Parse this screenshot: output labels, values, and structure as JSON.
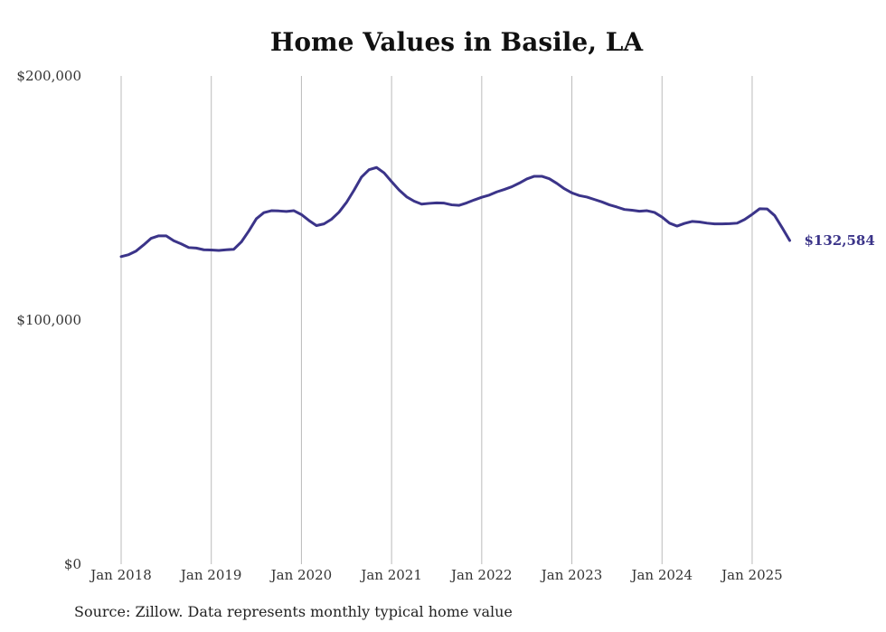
{
  "chart_data": {
    "type": "line",
    "title": "Home Values in Basile, LA",
    "xlabel": "",
    "ylabel": "",
    "source": "Source: Zillow. Data represents monthly typical home value",
    "ylim": [
      0,
      200000
    ],
    "xlim": [
      "2018-01",
      "2025-06"
    ],
    "y_ticks": [
      {
        "value": 0,
        "label": "$0"
      },
      {
        "value": 100000,
        "label": "$100,000"
      },
      {
        "value": 200000,
        "label": "$200,000"
      }
    ],
    "x_ticks": [
      {
        "value": "2018-01",
        "label": "Jan 2018"
      },
      {
        "value": "2019-01",
        "label": "Jan 2019"
      },
      {
        "value": "2020-01",
        "label": "Jan 2020"
      },
      {
        "value": "2021-01",
        "label": "Jan 2021"
      },
      {
        "value": "2022-01",
        "label": "Jan 2022"
      },
      {
        "value": "2023-01",
        "label": "Jan 2023"
      },
      {
        "value": "2024-01",
        "label": "Jan 2024"
      },
      {
        "value": "2025-01",
        "label": "Jan 2025"
      }
    ],
    "grid": {
      "vertical": true,
      "horizontal": false
    },
    "colors": {
      "line": "#3b3489",
      "grid": "#bbbbbb",
      "text": "#333333"
    },
    "end_label": "$132,584",
    "series": [
      {
        "points": [
          [
            "2018-01",
            126000
          ],
          [
            "2018-02",
            126800
          ],
          [
            "2018-03",
            128300
          ],
          [
            "2018-04",
            130800
          ],
          [
            "2018-05",
            133500
          ],
          [
            "2018-06",
            134500
          ],
          [
            "2018-07",
            134500
          ],
          [
            "2018-08",
            132500
          ],
          [
            "2018-09",
            131200
          ],
          [
            "2018-10",
            129700
          ],
          [
            "2018-11",
            129500
          ],
          [
            "2018-12",
            128800
          ],
          [
            "2019-01",
            128700
          ],
          [
            "2019-02",
            128500
          ],
          [
            "2019-03",
            128800
          ],
          [
            "2019-04",
            129000
          ],
          [
            "2019-05",
            132000
          ],
          [
            "2019-06",
            136500
          ],
          [
            "2019-07",
            141500
          ],
          [
            "2019-08",
            144000
          ],
          [
            "2019-09",
            144800
          ],
          [
            "2019-10",
            144700
          ],
          [
            "2019-11",
            144500
          ],
          [
            "2019-12",
            144800
          ],
          [
            "2020-01",
            143200
          ],
          [
            "2020-02",
            140800
          ],
          [
            "2020-03",
            138700
          ],
          [
            "2020-04",
            139400
          ],
          [
            "2020-05",
            141300
          ],
          [
            "2020-06",
            144200
          ],
          [
            "2020-07",
            148200
          ],
          [
            "2020-08",
            153200
          ],
          [
            "2020-09",
            158600
          ],
          [
            "2020-10",
            161600
          ],
          [
            "2020-11",
            162500
          ],
          [
            "2020-12",
            160300
          ],
          [
            "2021-01",
            156700
          ],
          [
            "2021-02",
            153300
          ],
          [
            "2021-03",
            150500
          ],
          [
            "2021-04",
            148700
          ],
          [
            "2021-05",
            147500
          ],
          [
            "2021-06",
            147800
          ],
          [
            "2021-07",
            148000
          ],
          [
            "2021-08",
            147900
          ],
          [
            "2021-09",
            147200
          ],
          [
            "2021-10",
            147000
          ],
          [
            "2021-11",
            148000
          ],
          [
            "2021-12",
            149200
          ],
          [
            "2022-01",
            150300
          ],
          [
            "2022-02",
            151200
          ],
          [
            "2022-03",
            152500
          ],
          [
            "2022-04",
            153500
          ],
          [
            "2022-05",
            154600
          ],
          [
            "2022-06",
            156100
          ],
          [
            "2022-07",
            157800
          ],
          [
            "2022-08",
            158900
          ],
          [
            "2022-09",
            158900
          ],
          [
            "2022-10",
            157900
          ],
          [
            "2022-11",
            156000
          ],
          [
            "2022-12",
            153800
          ],
          [
            "2023-01",
            152100
          ],
          [
            "2023-02",
            151000
          ],
          [
            "2023-03",
            150400
          ],
          [
            "2023-04",
            149400
          ],
          [
            "2023-05",
            148400
          ],
          [
            "2023-06",
            147200
          ],
          [
            "2023-07",
            146300
          ],
          [
            "2023-08",
            145300
          ],
          [
            "2023-09",
            145000
          ],
          [
            "2023-10",
            144600
          ],
          [
            "2023-11",
            144800
          ],
          [
            "2023-12",
            144100
          ],
          [
            "2024-01",
            142200
          ],
          [
            "2024-02",
            139700
          ],
          [
            "2024-03",
            138500
          ],
          [
            "2024-04",
            139600
          ],
          [
            "2024-05",
            140400
          ],
          [
            "2024-06",
            140200
          ],
          [
            "2024-07",
            139700
          ],
          [
            "2024-08",
            139400
          ],
          [
            "2024-09",
            139400
          ],
          [
            "2024-10",
            139500
          ],
          [
            "2024-11",
            139700
          ],
          [
            "2024-12",
            141200
          ],
          [
            "2025-01",
            143300
          ],
          [
            "2025-02",
            145600
          ],
          [
            "2025-03",
            145500
          ],
          [
            "2025-04",
            142800
          ],
          [
            "2025-05",
            137800
          ],
          [
            "2025-06",
            132584
          ]
        ]
      }
    ]
  }
}
